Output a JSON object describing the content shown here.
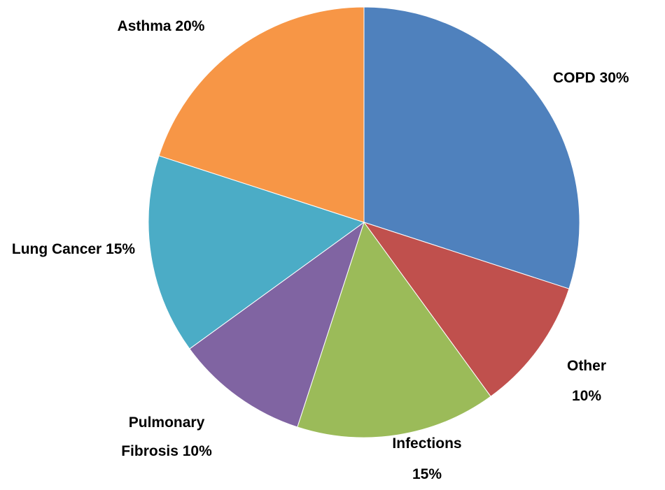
{
  "chart_data": {
    "type": "pie",
    "categories": [
      "COPD",
      "Other",
      "Infections",
      "Pulmonary Fibrosis",
      "Lung Cancer",
      "Asthma"
    ],
    "values": [
      30,
      10,
      15,
      10,
      15,
      20
    ],
    "value_labels": [
      "30%",
      "10%",
      "15%",
      "10%",
      "15%",
      "20%"
    ],
    "colors": [
      "#4f81bd",
      "#c0504d",
      "#9bbb59",
      "#8064a2",
      "#4bacc6",
      "#f79646"
    ]
  }
}
